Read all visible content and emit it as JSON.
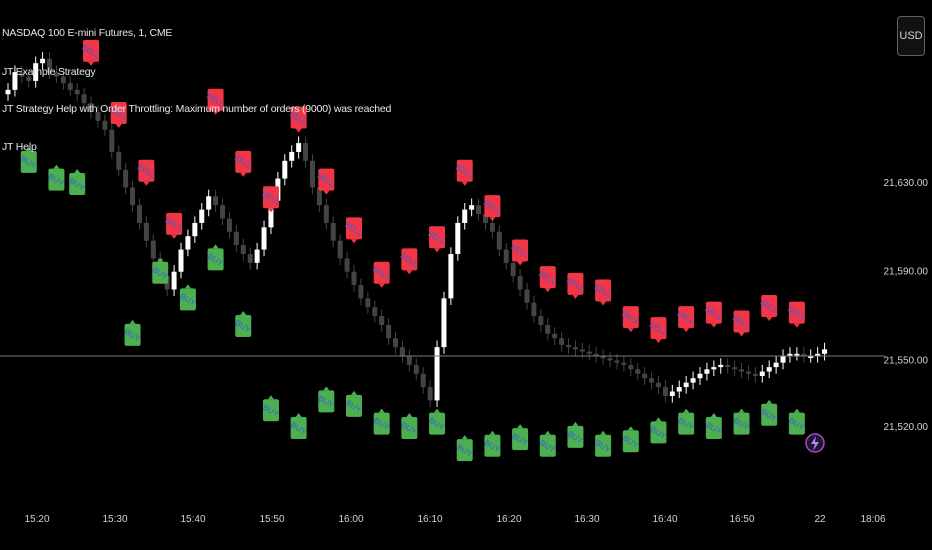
{
  "legend": {
    "symbol": "NASDAQ 100 E-mini Futures, 1, CME",
    "strategy": "JT Example Strategy",
    "warning": "JT Strategy Help with Order Throttling: Maximum number of orders (9000) was reached",
    "help": "JT Help"
  },
  "currency_button": "USD",
  "colors": {
    "background": "#000000",
    "sell_label": "#f23645",
    "buy_label": "#4caf50",
    "signal_text": "#3b5bdb",
    "candle_up": "#ffffff",
    "candle_down": "#444444",
    "price_line": "#787b86"
  },
  "icons": {
    "bottom_right": "lightning-icon"
  },
  "chart_data": {
    "type": "candlestick",
    "title": "NASDAQ 100 E-mini Futures, 1, CME",
    "y_ticks": [
      {
        "value": 21630,
        "label": "21,630.00"
      },
      {
        "value": 21590,
        "label": "21,590.00"
      },
      {
        "value": 21550,
        "label": "21,550.00"
      },
      {
        "value": 21520,
        "label": "21,520.00"
      }
    ],
    "x_ticks": [
      "15:20",
      "15:30",
      "15:40",
      "15:50",
      "16:00",
      "16:10",
      "16:20",
      "16:30",
      "16:40",
      "16:50",
      "22",
      "18:06"
    ],
    "current_price": 21552,
    "buy_label": "BUY",
    "sell_label": "SELL",
    "closes": [
      21672,
      21680,
      21678,
      21676,
      21684,
      21686,
      21680,
      21678,
      21675,
      21672,
      21670,
      21666,
      21662,
      21658,
      21654,
      21644,
      21636,
      21628,
      21620,
      21612,
      21604,
      21596,
      21588,
      21582,
      21590,
      21600,
      21606,
      21612,
      21618,
      21624,
      21620,
      21614,
      21608,
      21602,
      21598,
      21594,
      21600,
      21610,
      21622,
      21632,
      21640,
      21644,
      21648,
      21640,
      21628,
      21620,
      21612,
      21604,
      21596,
      21590,
      21584,
      21578,
      21574,
      21570,
      21566,
      21560,
      21556,
      21552,
      21548,
      21544,
      21538,
      21532,
      21556,
      21578,
      21598,
      21612,
      21618,
      21620,
      21616,
      21612,
      21608,
      21600,
      21594,
      21588,
      21582,
      21576,
      21570,
      21566,
      21562,
      21560,
      21557,
      21556,
      21555,
      21554,
      21553,
      21552,
      21551,
      21550,
      21549,
      21548,
      21546,
      21544,
      21542,
      21540,
      21538,
      21534,
      21536,
      21538,
      21540,
      21542,
      21544,
      21546,
      21547,
      21548,
      21547,
      21546,
      21545,
      21544,
      21543,
      21545,
      21547,
      21549,
      21552,
      21553,
      21553,
      21552,
      21552,
      21553,
      21555
    ],
    "sell_signals": [
      {
        "bar": 12,
        "price": 21690
      },
      {
        "bar": 16,
        "price": 21662
      },
      {
        "bar": 20,
        "price": 21636
      },
      {
        "bar": 24,
        "price": 21612
      },
      {
        "bar": 30,
        "price": 21668
      },
      {
        "bar": 34,
        "price": 21640
      },
      {
        "bar": 38,
        "price": 21624
      },
      {
        "bar": 42,
        "price": 21660
      },
      {
        "bar": 46,
        "price": 21632
      },
      {
        "bar": 50,
        "price": 21610
      },
      {
        "bar": 54,
        "price": 21590
      },
      {
        "bar": 58,
        "price": 21596
      },
      {
        "bar": 62,
        "price": 21606
      },
      {
        "bar": 66,
        "price": 21636
      },
      {
        "bar": 70,
        "price": 21620
      },
      {
        "bar": 74,
        "price": 21600
      },
      {
        "bar": 78,
        "price": 21588
      },
      {
        "bar": 82,
        "price": 21585
      },
      {
        "bar": 86,
        "price": 21582
      },
      {
        "bar": 90,
        "price": 21570
      },
      {
        "bar": 94,
        "price": 21565
      },
      {
        "bar": 98,
        "price": 21570
      },
      {
        "bar": 102,
        "price": 21572
      },
      {
        "bar": 106,
        "price": 21568
      },
      {
        "bar": 110,
        "price": 21575
      },
      {
        "bar": 114,
        "price": 21572
      }
    ],
    "buy_signals": [
      {
        "bar": 3,
        "price": 21640
      },
      {
        "bar": 7,
        "price": 21632
      },
      {
        "bar": 10,
        "price": 21630
      },
      {
        "bar": 18,
        "price": 21562
      },
      {
        "bar": 22,
        "price": 21590
      },
      {
        "bar": 26,
        "price": 21578
      },
      {
        "bar": 30,
        "price": 21596
      },
      {
        "bar": 34,
        "price": 21566
      },
      {
        "bar": 38,
        "price": 21528
      },
      {
        "bar": 42,
        "price": 21520
      },
      {
        "bar": 46,
        "price": 21532
      },
      {
        "bar": 50,
        "price": 21530
      },
      {
        "bar": 54,
        "price": 21522
      },
      {
        "bar": 58,
        "price": 21520
      },
      {
        "bar": 62,
        "price": 21522
      },
      {
        "bar": 66,
        "price": 21510
      },
      {
        "bar": 70,
        "price": 21512
      },
      {
        "bar": 74,
        "price": 21515
      },
      {
        "bar": 78,
        "price": 21512
      },
      {
        "bar": 82,
        "price": 21516
      },
      {
        "bar": 86,
        "price": 21512
      },
      {
        "bar": 90,
        "price": 21514
      },
      {
        "bar": 94,
        "price": 21518
      },
      {
        "bar": 98,
        "price": 21522
      },
      {
        "bar": 102,
        "price": 21520
      },
      {
        "bar": 106,
        "price": 21522
      },
      {
        "bar": 110,
        "price": 21526
      },
      {
        "bar": 114,
        "price": 21522
      }
    ],
    "grid": false,
    "legend_position": "top-left"
  }
}
